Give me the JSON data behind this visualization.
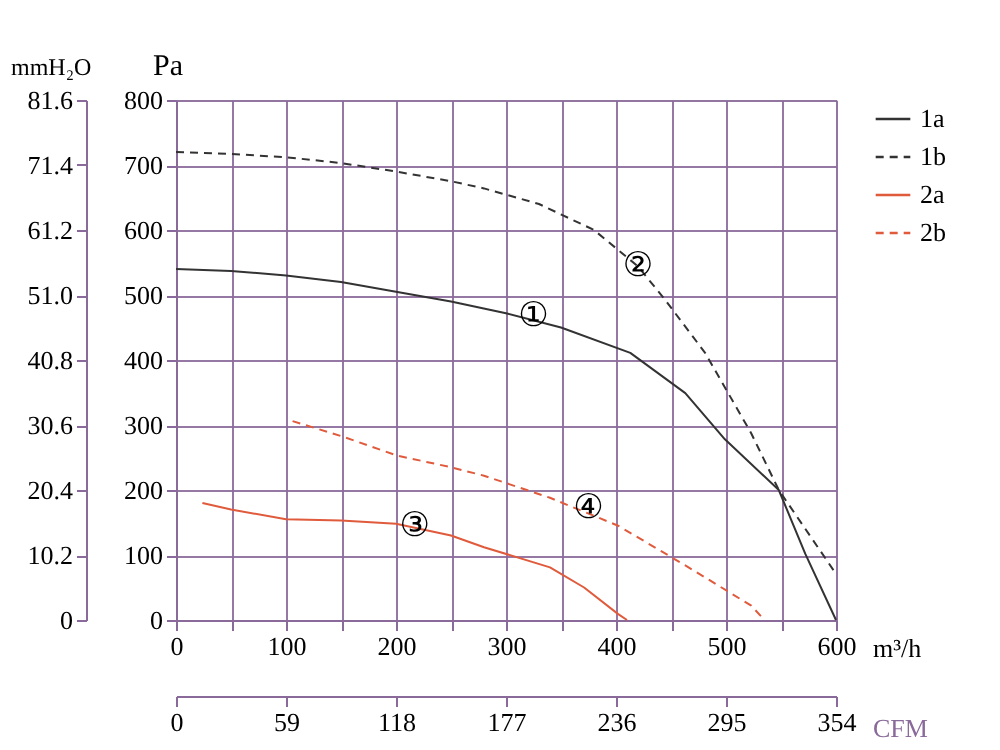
{
  "chart_data": {
    "type": "line",
    "xlabel": "m³/h",
    "ylabel": "Pa",
    "y2label": "mmH₂O",
    "x2label": "CFM",
    "xlim": [
      0,
      600
    ],
    "xticks": [
      0,
      {
        "value": 50,
        "label": null
      },
      100,
      {
        "value": 150,
        "label": null
      },
      200,
      {
        "value": 250,
        "label": null
      },
      300,
      {
        "value": 350,
        "label": null
      },
      400,
      {
        "value": 450,
        "label": null
      },
      500,
      {
        "value": 550,
        "label": null
      },
      600
    ],
    "ylim": [
      0,
      800
    ],
    "yticks": [
      0,
      100,
      200,
      300,
      400,
      500,
      600,
      700,
      800
    ],
    "y2lim": [
      0,
      81.6
    ],
    "y2ticks": [
      0,
      10.2,
      20.4,
      30.6,
      40.8,
      {
        "value": 51,
        "label": "51.0"
      },
      61.2,
      71.4,
      81.6
    ],
    "x2lim": [
      0,
      354
    ],
    "x2ticks": [
      0,
      59,
      118,
      177,
      236,
      295,
      354
    ],
    "grid": true,
    "legend": "right",
    "marker": "none",
    "series": [
      {
        "name": "1a",
        "color": "#333333",
        "line_style": "solid",
        "x": [
          0,
          50,
          100,
          150,
          200,
          250,
          300,
          350,
          413,
          463,
          499,
          548,
          572,
          600
        ],
        "values": [
          540,
          537,
          530,
          520,
          505,
          490,
          472,
          450,
          411,
          349,
          278,
          200,
          102,
          0
        ]
      },
      {
        "name": "1b",
        "color": "#333333",
        "line_style": "dashed",
        "x": [
          0,
          50,
          100,
          150,
          200,
          250,
          280,
          330,
          380,
          420,
          444,
          481,
          523,
          548,
          600
        ],
        "values": [
          720,
          717,
          712,
          703,
          690,
          675,
          664,
          640,
          600,
          544,
          494,
          411,
          287,
          200,
          71
        ]
      },
      {
        "name": "2a",
        "color": "#e05a3c",
        "line_style": "solid",
        "x": [
          24,
          50,
          100,
          150,
          200,
          250,
          280,
          340,
          371,
          402,
          410
        ],
        "values": [
          180,
          170,
          155,
          153,
          148,
          130,
          112,
          81,
          50,
          9,
          0
        ]
      },
      {
        "name": "2b",
        "color": "#e05a3c",
        "line_style": "dashed",
        "x": [
          106,
          152,
          201,
          250,
          280,
          340,
          402,
          463,
          523,
          535
        ],
        "values": [
          306,
          282,
          253,
          235,
          222,
          188,
          145,
          84,
          22,
          0
        ]
      }
    ],
    "annotations": [
      {
        "text": "①",
        "x": 325,
        "y": 467
      },
      {
        "text": "②",
        "x": 420,
        "y": 544
      },
      {
        "text": "③",
        "x": 217,
        "y": 145
      },
      {
        "text": "④",
        "x": 375,
        "y": 173
      }
    ]
  }
}
